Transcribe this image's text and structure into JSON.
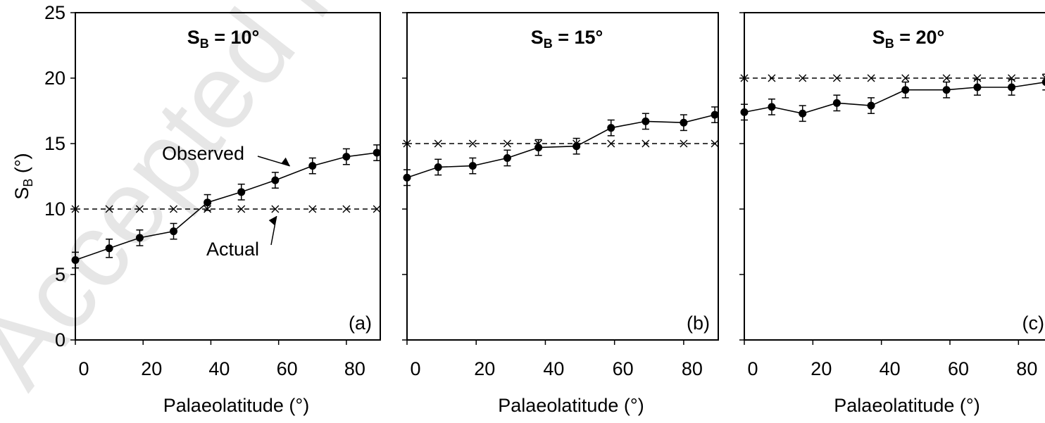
{
  "watermark": "Accepted M",
  "chart_data": [
    {
      "type": "line",
      "title": "S_B = 10°",
      "title_main": "S",
      "title_sub": "B",
      "title_rest": " = 10°",
      "panel_label": "(a)",
      "xlabel": "Palaeolatitude (°)",
      "ylabel": "S_B (°)",
      "ylabel_main": "S",
      "ylabel_sub": "B",
      "ylabel_rest": " (°)",
      "xlim": [
        0,
        90
      ],
      "ylim": [
        0,
        25
      ],
      "x_ticks": [
        0,
        20,
        40,
        60,
        80
      ],
      "y_ticks": [
        0,
        5,
        10,
        15,
        20,
        25
      ],
      "grid": false,
      "annotations": [
        {
          "text": "Observed",
          "target_x": 65,
          "target_y": 13.4
        },
        {
          "text": "Actual",
          "target_x": 65,
          "target_y": 10.0
        }
      ],
      "series": [
        {
          "name": "Observed",
          "x": [
            0,
            10,
            19,
            29,
            39,
            49,
            59,
            70,
            80,
            89
          ],
          "y": [
            6.1,
            7.0,
            7.8,
            8.3,
            10.5,
            11.3,
            12.2,
            13.3,
            14.0,
            14.3
          ],
          "error": [
            0.6,
            0.7,
            0.6,
            0.6,
            0.6,
            0.6,
            0.6,
            0.6,
            0.6,
            0.6
          ]
        },
        {
          "name": "Actual",
          "x": [
            0,
            10,
            19,
            29,
            39,
            49,
            59,
            70,
            80,
            89
          ],
          "y": [
            10,
            10,
            10,
            10,
            10,
            10,
            10,
            10,
            10,
            10
          ]
        }
      ]
    },
    {
      "type": "line",
      "title": "S_B = 15°",
      "title_main": "S",
      "title_sub": "B",
      "title_rest": " = 15°",
      "panel_label": "(b)",
      "xlabel": "Palaeolatitude (°)",
      "xlim": [
        0,
        90
      ],
      "ylim": [
        0,
        25
      ],
      "x_ticks": [
        0,
        20,
        40,
        60,
        80
      ],
      "grid": false,
      "series": [
        {
          "name": "Observed",
          "x": [
            0,
            9,
            19,
            29,
            38,
            49,
            59,
            69,
            80,
            89
          ],
          "y": [
            12.4,
            13.2,
            13.3,
            13.9,
            14.7,
            14.8,
            16.2,
            16.7,
            16.6,
            17.2
          ],
          "error": [
            0.6,
            0.6,
            0.6,
            0.6,
            0.6,
            0.6,
            0.6,
            0.6,
            0.6,
            0.6
          ]
        },
        {
          "name": "Actual",
          "x": [
            0,
            9,
            19,
            29,
            38,
            49,
            59,
            69,
            80,
            89
          ],
          "y": [
            15,
            15,
            15,
            15,
            15,
            15,
            15,
            15,
            15,
            15
          ]
        }
      ]
    },
    {
      "type": "line",
      "title": "S_B = 20°",
      "title_main": "S",
      "title_sub": "B",
      "title_rest": " = 20°",
      "panel_label": "(c)",
      "xlabel": "Palaeolatitude (°)",
      "xlim": [
        0,
        90
      ],
      "ylim": [
        0,
        25
      ],
      "x_ticks": [
        0,
        20,
        40,
        60,
        80
      ],
      "grid": false,
      "series": [
        {
          "name": "Observed",
          "x": [
            0,
            8,
            17,
            27,
            37,
            47,
            59,
            68,
            78,
            88
          ],
          "y": [
            17.4,
            17.8,
            17.3,
            18.1,
            17.9,
            19.1,
            19.1,
            19.3,
            19.3,
            19.7
          ],
          "error": [
            0.6,
            0.6,
            0.6,
            0.6,
            0.6,
            0.6,
            0.6,
            0.6,
            0.6,
            0.6
          ]
        },
        {
          "name": "Actual",
          "x": [
            0,
            8,
            17,
            27,
            37,
            47,
            59,
            68,
            78,
            88
          ],
          "y": [
            20,
            20,
            20,
            20,
            20,
            20,
            20,
            20,
            20,
            20
          ]
        }
      ]
    }
  ]
}
